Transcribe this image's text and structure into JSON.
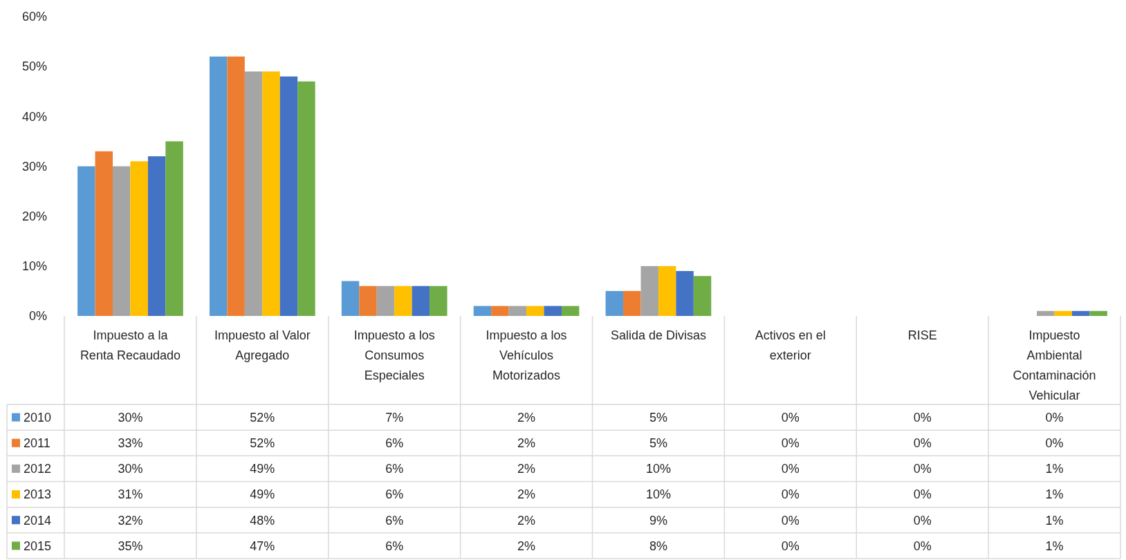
{
  "chart_data": {
    "type": "bar",
    "categories": [
      "Impuesto a la Renta Recaudado",
      "Impuesto al Valor Agregado",
      "Impuesto a los Consumos Especiales",
      "Impuesto a los Vehículos Motorizados",
      "Salida de Divisas",
      "Activos en el exterior",
      "RISE",
      "Impuesto Ambiental Contaminación Vehicular"
    ],
    "series": [
      {
        "name": "2010",
        "color": "#5b9bd5",
        "values": [
          30,
          52,
          7,
          2,
          5,
          0,
          0,
          0
        ],
        "value_labels": [
          "30%",
          "52%",
          "7%",
          "2%",
          "5%",
          "0%",
          "0%",
          "0%"
        ]
      },
      {
        "name": "2011",
        "color": "#ed7d31",
        "values": [
          33,
          52,
          6,
          2,
          5,
          0,
          0,
          0
        ],
        "value_labels": [
          "33%",
          "52%",
          "6%",
          "2%",
          "5%",
          "0%",
          "0%",
          "0%"
        ]
      },
      {
        "name": "2012",
        "color": "#a5a5a5",
        "values": [
          30,
          49,
          6,
          2,
          10,
          0,
          0,
          1
        ],
        "value_labels": [
          "30%",
          "49%",
          "6%",
          "2%",
          "10%",
          "0%",
          "0%",
          "1%"
        ]
      },
      {
        "name": "2013",
        "color": "#ffc000",
        "values": [
          31,
          49,
          6,
          2,
          10,
          0,
          0,
          1
        ],
        "value_labels": [
          "31%",
          "49%",
          "6%",
          "2%",
          "10%",
          "0%",
          "0%",
          "1%"
        ]
      },
      {
        "name": "2014",
        "color": "#4472c4",
        "values": [
          32,
          48,
          6,
          2,
          9,
          0,
          0,
          1
        ],
        "value_labels": [
          "32%",
          "48%",
          "6%",
          "2%",
          "9%",
          "0%",
          "0%",
          "1%"
        ]
      },
      {
        "name": "2015",
        "color": "#70ad47",
        "values": [
          35,
          47,
          6,
          2,
          8,
          0,
          0,
          1
        ],
        "value_labels": [
          "35%",
          "47%",
          "6%",
          "2%",
          "8%",
          "0%",
          "0%",
          "1%"
        ]
      }
    ],
    "ylim": [
      0,
      60
    ],
    "yticks": [
      {
        "value": 0,
        "label": "0%"
      },
      {
        "value": 10,
        "label": "10%"
      },
      {
        "value": 20,
        "label": "20%"
      },
      {
        "value": 30,
        "label": "30%"
      },
      {
        "value": 40,
        "label": "40%"
      },
      {
        "value": 50,
        "label": "50%"
      },
      {
        "value": 60,
        "label": "60%"
      }
    ],
    "legend": "bottom"
  }
}
